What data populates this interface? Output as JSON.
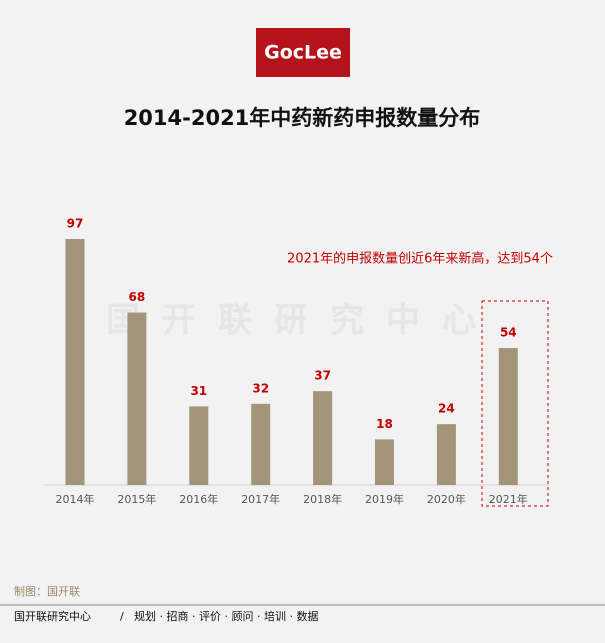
{
  "logo": "GocLee",
  "chart_data": {
    "type": "bar",
    "title": "2014-2021年中药新药申报数量分布",
    "categories": [
      "2014年",
      "2015年",
      "2016年",
      "2017年",
      "2018年",
      "2019年",
      "2020年",
      "2021年"
    ],
    "values": [
      97,
      68,
      31,
      32,
      37,
      18,
      24,
      54
    ],
    "color": "#a39579",
    "label_color": "#c00000",
    "annotation": "2021年的申报数量创近6年来新高，达到54个",
    "watermark": "国开联研究中心"
  },
  "footer": {
    "credit": "制图：国开联",
    "org": "国开联研究中心",
    "sep": "/",
    "services": "规划 · 招商 · 评价 · 顾问 · 培训 · 数据"
  }
}
